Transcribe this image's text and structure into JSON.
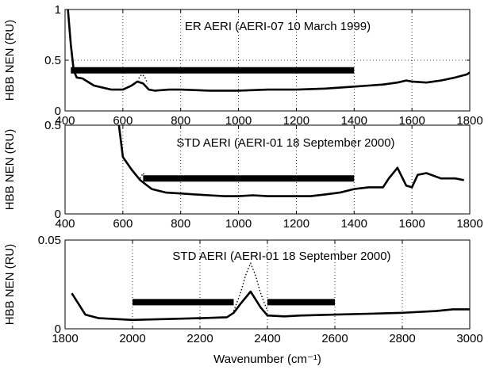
{
  "chart_data": [
    {
      "type": "line",
      "title": "ER AERI (AERI-07 10 March 1999)",
      "ylabel": "HBB NEN (RU)",
      "xlabel": "",
      "xlim": [
        400,
        1800
      ],
      "ylim": [
        0,
        1
      ],
      "xticks": [
        400,
        600,
        800,
        1000,
        1200,
        1400,
        1600,
        1800
      ],
      "yticks": [
        0,
        0.5,
        1
      ],
      "ytick_labels": [
        "0",
        "0.5",
        "1"
      ],
      "grid": true,
      "series": [
        {
          "style": "solid",
          "x": [
            410,
            420,
            430,
            440,
            460,
            500,
            560,
            600,
            630,
            650,
            670,
            690,
            710,
            760,
            800,
            900,
            1000,
            1100,
            1200,
            1300,
            1350,
            1400,
            1450,
            1500,
            1550,
            1580,
            1600,
            1650,
            1700,
            1750,
            1790,
            1800
          ],
          "y": [
            1.0,
            0.65,
            0.4,
            0.33,
            0.32,
            0.25,
            0.21,
            0.21,
            0.25,
            0.29,
            0.27,
            0.21,
            0.2,
            0.21,
            0.21,
            0.2,
            0.2,
            0.21,
            0.21,
            0.22,
            0.23,
            0.24,
            0.25,
            0.26,
            0.28,
            0.3,
            0.29,
            0.28,
            0.3,
            0.33,
            0.36,
            0.38
          ]
        },
        {
          "style": "dotted",
          "x": [
            655,
            665,
            675,
            685
          ],
          "y": [
            0.32,
            0.36,
            0.34,
            0.27
          ]
        }
      ],
      "bars": [
        {
          "x": [
            420,
            1400
          ],
          "y": 0.4
        }
      ]
    },
    {
      "type": "line",
      "title": "STD AERI (AERI-01 18 September 2000)",
      "ylabel": "HBB NEN (RU)",
      "xlabel": "",
      "xlim": [
        400,
        1800
      ],
      "ylim": [
        0,
        0.5
      ],
      "xticks": [
        400,
        600,
        800,
        1000,
        1200,
        1400,
        1600,
        1800
      ],
      "yticks": [
        0,
        0.5
      ],
      "ytick_labels": [
        "0",
        "0.5"
      ],
      "grid": true,
      "series": [
        {
          "style": "solid",
          "x": [
            580,
            600,
            630,
            660,
            700,
            750,
            800,
            850,
            900,
            950,
            1000,
            1050,
            1100,
            1150,
            1200,
            1250,
            1300,
            1350,
            1400,
            1450,
            1500,
            1520,
            1550,
            1580,
            1600,
            1620,
            1650,
            1700,
            1750,
            1780
          ],
          "y": [
            0.58,
            0.32,
            0.25,
            0.19,
            0.14,
            0.12,
            0.115,
            0.11,
            0.105,
            0.1,
            0.1,
            0.105,
            0.1,
            0.1,
            0.1,
            0.1,
            0.11,
            0.12,
            0.14,
            0.15,
            0.15,
            0.2,
            0.26,
            0.16,
            0.15,
            0.22,
            0.23,
            0.2,
            0.2,
            0.19
          ]
        },
        {
          "style": "dotted",
          "x": [
            660,
            670,
            680
          ],
          "y": [
            0.2,
            0.23,
            0.2
          ]
        }
      ],
      "bars": [
        {
          "x": [
            670,
            1400
          ],
          "y": 0.2
        }
      ]
    },
    {
      "type": "line",
      "title": "STD AERI (AERI-01 18 September 2000)",
      "ylabel": "HBB NEN (RU)",
      "xlabel": "Wavenumber (cm⁻¹)",
      "xlim": [
        1800,
        3000
      ],
      "ylim": [
        0,
        0.05
      ],
      "xticks": [
        1800,
        2000,
        2200,
        2400,
        2600,
        2800,
        3000
      ],
      "yticks": [
        0,
        0.05
      ],
      "ytick_labels": [
        "0",
        "0.05"
      ],
      "grid": true,
      "series": [
        {
          "style": "solid",
          "x": [
            1820,
            1840,
            1860,
            1900,
            1950,
            2000,
            2100,
            2200,
            2280,
            2300,
            2320,
            2350,
            2380,
            2400,
            2450,
            2500,
            2600,
            2700,
            2800,
            2900,
            2950,
            3000
          ],
          "y": [
            0.02,
            0.014,
            0.008,
            0.006,
            0.0055,
            0.005,
            0.0055,
            0.006,
            0.0065,
            0.009,
            0.014,
            0.021,
            0.012,
            0.0075,
            0.007,
            0.0075,
            0.008,
            0.0085,
            0.009,
            0.01,
            0.011,
            0.011
          ]
        },
        {
          "style": "dotted",
          "x": [
            2300,
            2320,
            2335,
            2350,
            2365,
            2380,
            2400
          ],
          "y": [
            0.01,
            0.02,
            0.03,
            0.037,
            0.03,
            0.02,
            0.01
          ]
        }
      ],
      "bars": [
        {
          "x": [
            2000,
            2300
          ],
          "y": 0.015
        },
        {
          "x": [
            2400,
            2600
          ],
          "y": 0.015
        }
      ]
    }
  ]
}
